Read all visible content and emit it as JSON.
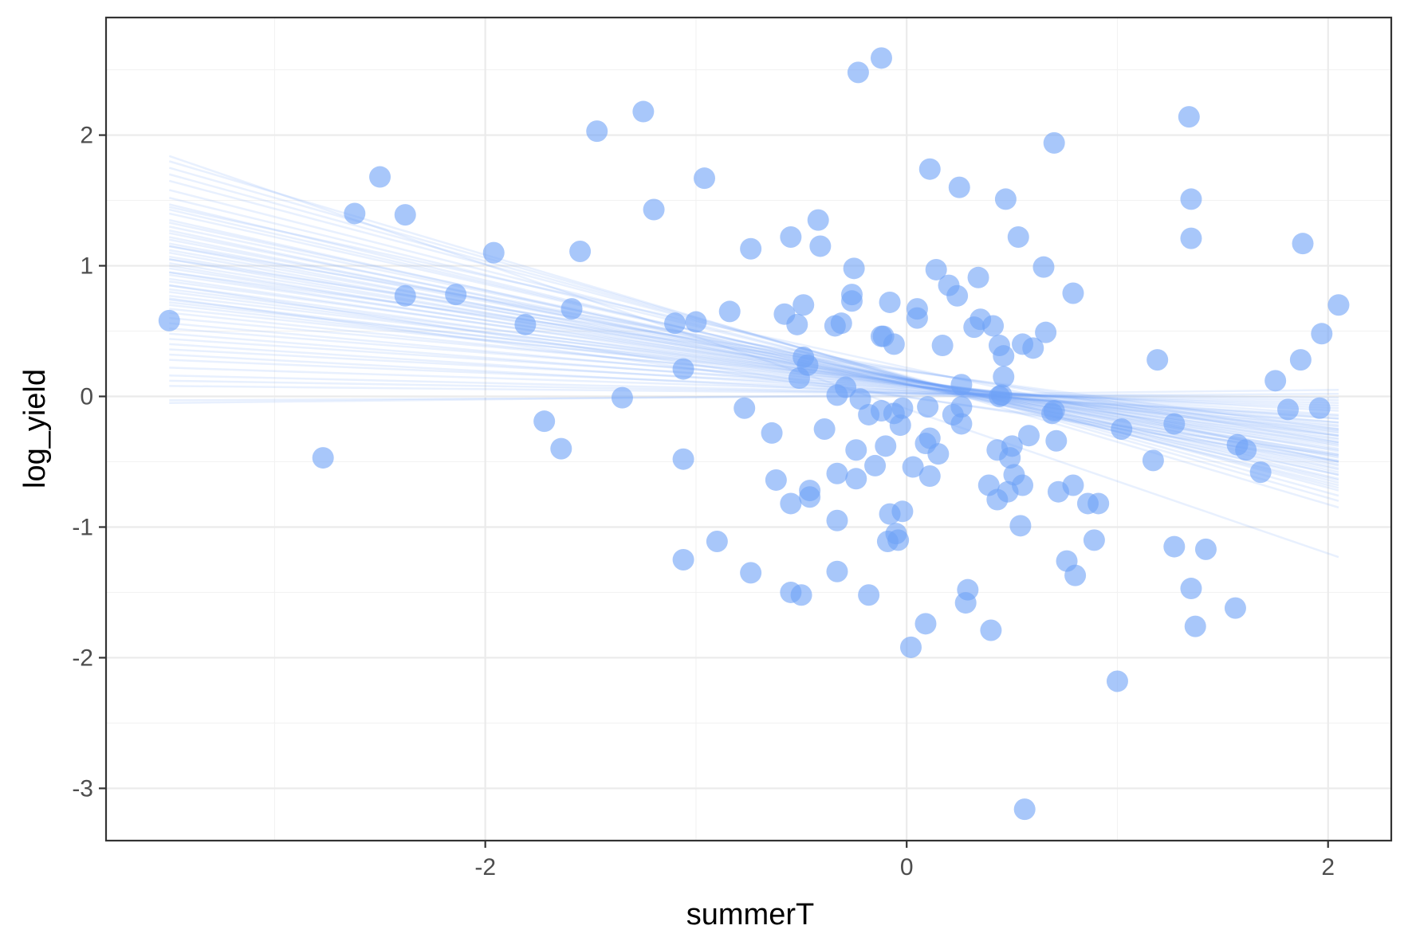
{
  "chart_data": {
    "type": "scatter",
    "title": "",
    "xlabel": "summerT",
    "ylabel": "log_yield",
    "xlim": [
      -3.8,
      2.3
    ],
    "ylim": [
      -3.4,
      2.9
    ],
    "x_ticks": [
      -2,
      0,
      2
    ],
    "y_ticks": [
      -3,
      -2,
      -1,
      0,
      1,
      2
    ],
    "x_tick_labels": [
      "-2",
      "0",
      "2"
    ],
    "y_tick_labels": [
      "-3",
      "-2",
      "-1",
      "0",
      "1",
      "2"
    ],
    "grid": true,
    "legend": "none",
    "point_color": "#6ea1f7",
    "point_opacity": 0.6,
    "line_color": "#6ea1f7",
    "points": [
      {
        "x": -3.5,
        "y": 0.58
      },
      {
        "x": -2.77,
        "y": -0.47
      },
      {
        "x": -2.62,
        "y": 1.4
      },
      {
        "x": -2.5,
        "y": 1.68
      },
      {
        "x": -2.38,
        "y": 1.39
      },
      {
        "x": -2.38,
        "y": 0.77
      },
      {
        "x": -2.14,
        "y": 0.78
      },
      {
        "x": -1.96,
        "y": 1.1
      },
      {
        "x": -1.81,
        "y": 0.55
      },
      {
        "x": -1.72,
        "y": -0.19
      },
      {
        "x": -1.64,
        "y": -0.4
      },
      {
        "x": -1.59,
        "y": 0.67
      },
      {
        "x": -1.55,
        "y": 1.11
      },
      {
        "x": -1.47,
        "y": 2.03
      },
      {
        "x": -1.35,
        "y": -0.01
      },
      {
        "x": -1.25,
        "y": 2.18
      },
      {
        "x": -1.2,
        "y": 1.43
      },
      {
        "x": -1.1,
        "y": 0.56
      },
      {
        "x": -1.06,
        "y": 0.21
      },
      {
        "x": -1.06,
        "y": -0.48
      },
      {
        "x": -1.06,
        "y": -1.25
      },
      {
        "x": -1.0,
        "y": 0.57
      },
      {
        "x": -0.96,
        "y": 1.67
      },
      {
        "x": -0.9,
        "y": -1.11
      },
      {
        "x": -0.84,
        "y": 0.65
      },
      {
        "x": -0.77,
        "y": -0.09
      },
      {
        "x": -0.74,
        "y": 1.13
      },
      {
        "x": -0.74,
        "y": -1.35
      },
      {
        "x": -0.64,
        "y": -0.28
      },
      {
        "x": -0.62,
        "y": -0.64
      },
      {
        "x": -0.58,
        "y": 0.63
      },
      {
        "x": -0.55,
        "y": 1.22
      },
      {
        "x": -0.55,
        "y": -0.82
      },
      {
        "x": -0.55,
        "y": -1.5
      },
      {
        "x": -0.52,
        "y": 0.55
      },
      {
        "x": -0.51,
        "y": 0.14
      },
      {
        "x": -0.5,
        "y": -1.52
      },
      {
        "x": -0.49,
        "y": 0.7
      },
      {
        "x": -0.49,
        "y": 0.3
      },
      {
        "x": -0.47,
        "y": 0.24
      },
      {
        "x": -0.46,
        "y": -0.72
      },
      {
        "x": -0.46,
        "y": -0.77
      },
      {
        "x": -0.42,
        "y": 1.35
      },
      {
        "x": -0.41,
        "y": 1.15
      },
      {
        "x": -0.39,
        "y": -0.25
      },
      {
        "x": -0.34,
        "y": 0.54
      },
      {
        "x": -0.33,
        "y": -0.59
      },
      {
        "x": -0.33,
        "y": 0.01
      },
      {
        "x": -0.33,
        "y": -0.95
      },
      {
        "x": -0.33,
        "y": -1.34
      },
      {
        "x": -0.31,
        "y": 0.56
      },
      {
        "x": -0.29,
        "y": 0.07
      },
      {
        "x": -0.26,
        "y": 0.73
      },
      {
        "x": -0.26,
        "y": 0.78
      },
      {
        "x": -0.25,
        "y": 0.98
      },
      {
        "x": -0.24,
        "y": -0.41
      },
      {
        "x": -0.24,
        "y": -0.63
      },
      {
        "x": -0.23,
        "y": 2.48
      },
      {
        "x": -0.22,
        "y": -0.02
      },
      {
        "x": -0.18,
        "y": -0.14
      },
      {
        "x": -0.18,
        "y": -1.52
      },
      {
        "x": -0.15,
        "y": -0.53
      },
      {
        "x": -0.12,
        "y": 2.59
      },
      {
        "x": -0.12,
        "y": 0.46
      },
      {
        "x": -0.12,
        "y": -0.11
      },
      {
        "x": -0.11,
        "y": 0.46
      },
      {
        "x": -0.1,
        "y": -0.38
      },
      {
        "x": -0.09,
        "y": -1.11
      },
      {
        "x": -0.08,
        "y": -0.9
      },
      {
        "x": -0.08,
        "y": 0.72
      },
      {
        "x": -0.06,
        "y": 0.4
      },
      {
        "x": -0.06,
        "y": -0.13
      },
      {
        "x": -0.05,
        "y": -1.05
      },
      {
        "x": -0.04,
        "y": -1.1
      },
      {
        "x": -0.03,
        "y": -0.22
      },
      {
        "x": -0.02,
        "y": -0.88
      },
      {
        "x": -0.02,
        "y": -0.09
      },
      {
        "x": 0.02,
        "y": -1.92
      },
      {
        "x": 0.03,
        "y": -0.54
      },
      {
        "x": 0.05,
        "y": 0.6
      },
      {
        "x": 0.05,
        "y": 0.67
      },
      {
        "x": 0.09,
        "y": -0.36
      },
      {
        "x": 0.09,
        "y": -1.74
      },
      {
        "x": 0.1,
        "y": -0.08
      },
      {
        "x": 0.11,
        "y": 1.74
      },
      {
        "x": 0.11,
        "y": -0.32
      },
      {
        "x": 0.11,
        "y": -0.61
      },
      {
        "x": 0.14,
        "y": 0.97
      },
      {
        "x": 0.15,
        "y": -0.44
      },
      {
        "x": 0.17,
        "y": 0.39
      },
      {
        "x": 0.2,
        "y": 0.85
      },
      {
        "x": 0.22,
        "y": -0.14
      },
      {
        "x": 0.24,
        "y": 0.77
      },
      {
        "x": 0.25,
        "y": 1.6
      },
      {
        "x": 0.26,
        "y": -0.08
      },
      {
        "x": 0.26,
        "y": -0.21
      },
      {
        "x": 0.26,
        "y": 0.09
      },
      {
        "x": 0.28,
        "y": -1.58
      },
      {
        "x": 0.29,
        "y": -1.48
      },
      {
        "x": 0.32,
        "y": 0.53
      },
      {
        "x": 0.34,
        "y": 0.91
      },
      {
        "x": 0.35,
        "y": 0.59
      },
      {
        "x": 0.39,
        "y": -0.68
      },
      {
        "x": 0.4,
        "y": -1.79
      },
      {
        "x": 0.41,
        "y": 0.54
      },
      {
        "x": 0.43,
        "y": -0.79
      },
      {
        "x": 0.43,
        "y": -0.41
      },
      {
        "x": 0.44,
        "y": 0.0
      },
      {
        "x": 0.44,
        "y": 0.39
      },
      {
        "x": 0.45,
        "y": 0.01
      },
      {
        "x": 0.46,
        "y": 0.15
      },
      {
        "x": 0.46,
        "y": 0.31
      },
      {
        "x": 0.47,
        "y": 1.51
      },
      {
        "x": 0.48,
        "y": -0.73
      },
      {
        "x": 0.49,
        "y": -0.47
      },
      {
        "x": 0.5,
        "y": -0.38
      },
      {
        "x": 0.51,
        "y": -0.6
      },
      {
        "x": 0.53,
        "y": 1.22
      },
      {
        "x": 0.54,
        "y": -0.99
      },
      {
        "x": 0.55,
        "y": -0.68
      },
      {
        "x": 0.55,
        "y": 0.4
      },
      {
        "x": 0.56,
        "y": -3.16
      },
      {
        "x": 0.58,
        "y": -0.3
      },
      {
        "x": 0.6,
        "y": 0.37
      },
      {
        "x": 0.65,
        "y": 0.99
      },
      {
        "x": 0.66,
        "y": 0.49
      },
      {
        "x": 0.69,
        "y": -0.13
      },
      {
        "x": 0.7,
        "y": 1.94
      },
      {
        "x": 0.7,
        "y": -0.11
      },
      {
        "x": 0.71,
        "y": -0.34
      },
      {
        "x": 0.72,
        "y": -0.73
      },
      {
        "x": 0.76,
        "y": -1.26
      },
      {
        "x": 0.79,
        "y": 0.79
      },
      {
        "x": 0.79,
        "y": -0.68
      },
      {
        "x": 0.8,
        "y": -1.37
      },
      {
        "x": 0.86,
        "y": -0.82
      },
      {
        "x": 0.89,
        "y": -1.1
      },
      {
        "x": 0.91,
        "y": -0.82
      },
      {
        "x": 1.0,
        "y": -2.18
      },
      {
        "x": 1.02,
        "y": -0.25
      },
      {
        "x": 1.17,
        "y": -0.49
      },
      {
        "x": 1.19,
        "y": 0.28
      },
      {
        "x": 1.27,
        "y": -0.21
      },
      {
        "x": 1.27,
        "y": -1.15
      },
      {
        "x": 1.34,
        "y": 2.14
      },
      {
        "x": 1.35,
        "y": 1.51
      },
      {
        "x": 1.35,
        "y": 1.21
      },
      {
        "x": 1.35,
        "y": -1.47
      },
      {
        "x": 1.37,
        "y": -1.76
      },
      {
        "x": 1.42,
        "y": -1.17
      },
      {
        "x": 1.56,
        "y": -1.62
      },
      {
        "x": 1.57,
        "y": -0.37
      },
      {
        "x": 1.61,
        "y": -0.41
      },
      {
        "x": 1.68,
        "y": -0.58
      },
      {
        "x": 1.75,
        "y": 0.12
      },
      {
        "x": 1.81,
        "y": -0.1
      },
      {
        "x": 1.87,
        "y": 0.28
      },
      {
        "x": 1.88,
        "y": 1.17
      },
      {
        "x": 1.96,
        "y": -0.09
      },
      {
        "x": 1.97,
        "y": 0.48
      },
      {
        "x": 2.05,
        "y": 0.7
      }
    ],
    "fit_lines": [
      {
        "x": [
          -3.5,
          2.05
        ],
        "y": [
          1.84,
          -1.23
        ]
      },
      {
        "x": [
          -3.5,
          2.05
        ],
        "y": [
          1.8,
          -0.85
        ]
      },
      {
        "x": [
          -3.5,
          2.05
        ],
        "y": [
          1.75,
          -0.8
        ]
      },
      {
        "x": [
          -3.5,
          2.05
        ],
        "y": [
          1.7,
          -0.76
        ]
      },
      {
        "x": [
          -3.5,
          2.05
        ],
        "y": [
          1.65,
          -0.72
        ]
      },
      {
        "x": [
          -3.5,
          2.05
        ],
        "y": [
          1.58,
          -0.7
        ]
      },
      {
        "x": [
          -3.5,
          2.05
        ],
        "y": [
          1.52,
          -0.66
        ]
      },
      {
        "x": [
          -3.5,
          2.05
        ],
        "y": [
          1.47,
          -0.68
        ]
      },
      {
        "x": [
          -3.5,
          2.05
        ],
        "y": [
          1.43,
          -0.63
        ]
      },
      {
        "x": [
          -3.5,
          2.05
        ],
        "y": [
          1.4,
          -0.6
        ]
      },
      {
        "x": [
          -3.5,
          2.05
        ],
        "y": [
          1.35,
          -0.64
        ]
      },
      {
        "x": [
          -3.5,
          2.05
        ],
        "y": [
          1.33,
          -0.58
        ]
      },
      {
        "x": [
          -3.5,
          2.05
        ],
        "y": [
          1.3,
          -0.55
        ]
      },
      {
        "x": [
          -3.5,
          2.05
        ],
        "y": [
          1.27,
          -0.6
        ]
      },
      {
        "x": [
          -3.5,
          2.05
        ],
        "y": [
          1.25,
          -0.52
        ]
      },
      {
        "x": [
          -3.5,
          2.05
        ],
        "y": [
          1.22,
          -0.56
        ]
      },
      {
        "x": [
          -3.5,
          2.05
        ],
        "y": [
          1.2,
          -0.5
        ]
      },
      {
        "x": [
          -3.5,
          2.05
        ],
        "y": [
          1.17,
          -0.47
        ]
      },
      {
        "x": [
          -3.5,
          2.05
        ],
        "y": [
          1.15,
          -0.53
        ]
      },
      {
        "x": [
          -3.5,
          2.05
        ],
        "y": [
          1.12,
          -0.45
        ]
      },
      {
        "x": [
          -3.5,
          2.05
        ],
        "y": [
          1.1,
          -0.49
        ]
      },
      {
        "x": [
          -3.5,
          2.05
        ],
        "y": [
          1.07,
          -0.42
        ]
      },
      {
        "x": [
          -3.5,
          2.05
        ],
        "y": [
          1.05,
          -0.46
        ]
      },
      {
        "x": [
          -3.5,
          2.05
        ],
        "y": [
          1.02,
          -0.4
        ]
      },
      {
        "x": [
          -3.5,
          2.05
        ],
        "y": [
          1.0,
          -0.44
        ]
      },
      {
        "x": [
          -3.5,
          2.05
        ],
        "y": [
          0.98,
          -0.37
        ]
      },
      {
        "x": [
          -3.5,
          2.05
        ],
        "y": [
          0.95,
          -0.41
        ]
      },
      {
        "x": [
          -3.5,
          2.05
        ],
        "y": [
          0.93,
          -0.35
        ]
      },
      {
        "x": [
          -3.5,
          2.05
        ],
        "y": [
          0.9,
          -0.38
        ]
      },
      {
        "x": [
          -3.5,
          2.05
        ],
        "y": [
          0.88,
          -0.32
        ]
      },
      {
        "x": [
          -3.5,
          2.05
        ],
        "y": [
          0.85,
          -0.36
        ]
      },
      {
        "x": [
          -3.5,
          2.05
        ],
        "y": [
          0.82,
          -0.3
        ]
      },
      {
        "x": [
          -3.5,
          2.05
        ],
        "y": [
          0.8,
          -0.33
        ]
      },
      {
        "x": [
          -3.5,
          2.05
        ],
        "y": [
          0.77,
          -0.27
        ]
      },
      {
        "x": [
          -3.5,
          2.05
        ],
        "y": [
          0.74,
          -0.3
        ]
      },
      {
        "x": [
          -3.5,
          2.05
        ],
        "y": [
          0.72,
          -0.25
        ]
      },
      {
        "x": [
          -3.5,
          2.05
        ],
        "y": [
          0.7,
          -0.28
        ]
      },
      {
        "x": [
          -3.5,
          2.05
        ],
        "y": [
          0.67,
          -0.22
        ]
      },
      {
        "x": [
          -3.5,
          2.05
        ],
        "y": [
          0.64,
          -0.26
        ]
      },
      {
        "x": [
          -3.5,
          2.05
        ],
        "y": [
          0.6,
          -0.2
        ]
      },
      {
        "x": [
          -3.5,
          2.05
        ],
        "y": [
          0.56,
          -0.23
        ]
      },
      {
        "x": [
          -3.5,
          2.05
        ],
        "y": [
          0.52,
          -0.17
        ]
      },
      {
        "x": [
          -3.5,
          2.05
        ],
        "y": [
          0.48,
          -0.2
        ]
      },
      {
        "x": [
          -3.5,
          2.05
        ],
        "y": [
          0.44,
          -0.14
        ]
      },
      {
        "x": [
          -3.5,
          2.05
        ],
        "y": [
          0.4,
          -0.17
        ]
      },
      {
        "x": [
          -3.5,
          2.05
        ],
        "y": [
          0.36,
          -0.11
        ]
      },
      {
        "x": [
          -3.5,
          2.05
        ],
        "y": [
          0.32,
          -0.15
        ]
      },
      {
        "x": [
          -3.5,
          2.05
        ],
        "y": [
          0.28,
          -0.09
        ]
      },
      {
        "x": [
          -3.5,
          2.05
        ],
        "y": [
          0.22,
          -0.07
        ]
      },
      {
        "x": [
          -3.5,
          2.05
        ],
        "y": [
          0.16,
          -0.05
        ]
      },
      {
        "x": [
          -3.5,
          2.05
        ],
        "y": [
          0.12,
          -0.03
        ]
      },
      {
        "x": [
          -3.5,
          2.05
        ],
        "y": [
          0.08,
          -0.01
        ]
      },
      {
        "x": [
          -3.5,
          2.05
        ],
        "y": [
          -0.03,
          0.02
        ]
      },
      {
        "x": [
          -3.5,
          2.05
        ],
        "y": [
          -0.05,
          0.05
        ]
      },
      {
        "x": [
          -3.5,
          2.05
        ],
        "y": [
          1.45,
          -0.5
        ]
      },
      {
        "x": [
          -3.5,
          2.05
        ],
        "y": [
          1.05,
          -0.3
        ]
      },
      {
        "x": [
          -3.5,
          2.05
        ],
        "y": [
          0.95,
          -0.25
        ]
      },
      {
        "x": [
          -3.5,
          2.05
        ],
        "y": [
          0.75,
          -0.45
        ]
      },
      {
        "x": [
          -3.5,
          2.05
        ],
        "y": [
          1.15,
          -0.35
        ]
      },
      {
        "x": [
          -3.5,
          2.05
        ],
        "y": [
          0.85,
          -0.5
        ]
      }
    ]
  }
}
